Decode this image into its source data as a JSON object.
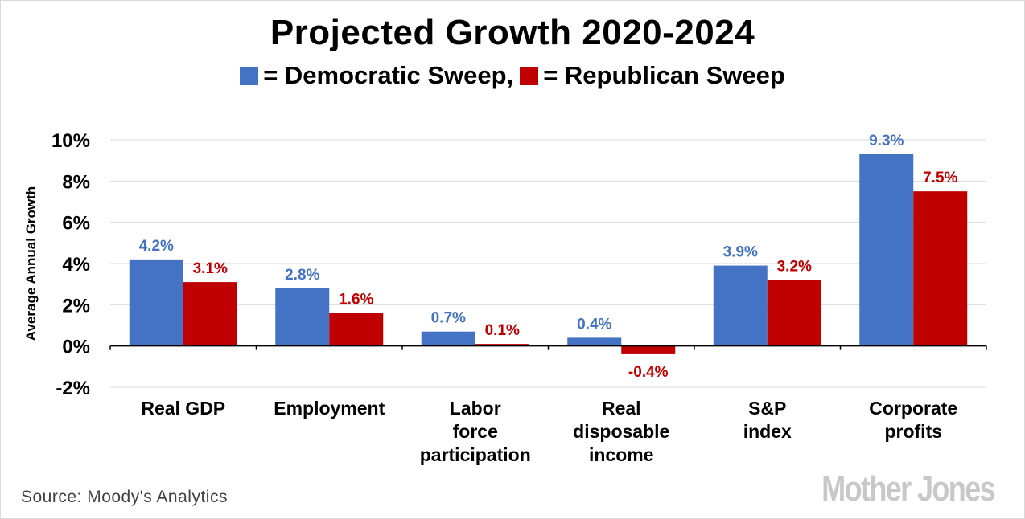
{
  "chart_data": {
    "type": "bar",
    "title": "Projected Growth 2020-2024",
    "legend": {
      "democratic_label": "= Democratic Sweep,",
      "republican_label": "= Republican Sweep"
    },
    "ylabel": "Average Annual Growth",
    "xlabel": "",
    "ylim": [
      -2,
      10
    ],
    "yticks": [
      -2,
      0,
      2,
      4,
      6,
      8,
      10
    ],
    "ytick_labels": [
      "-2%",
      "0%",
      "2%",
      "4%",
      "6%",
      "8%",
      "10%"
    ],
    "grid": true,
    "categories": [
      [
        "Real GDP"
      ],
      [
        "Employment"
      ],
      [
        "Labor",
        "force",
        "participation"
      ],
      [
        "Real",
        "disposable",
        "income"
      ],
      [
        "S&P",
        "index"
      ],
      [
        "Corporate",
        "profits"
      ]
    ],
    "series": [
      {
        "name": "Democratic Sweep",
        "color": "#4472c4",
        "values": [
          4.2,
          2.8,
          0.7,
          0.4,
          3.9,
          9.3
        ],
        "labels": [
          "4.2%",
          "2.8%",
          "0.7%",
          "0.4%",
          "3.9%",
          "9.3%"
        ]
      },
      {
        "name": "Republican Sweep",
        "color": "#c00000",
        "values": [
          3.1,
          1.6,
          0.1,
          -0.4,
          3.2,
          7.5
        ],
        "labels": [
          "3.1%",
          "1.6%",
          "0.1%",
          "-0.4%",
          "3.2%",
          "7.5%"
        ]
      }
    ]
  },
  "footer": {
    "source": "Source: Moody's Analytics",
    "brand": "Mother Jones"
  }
}
